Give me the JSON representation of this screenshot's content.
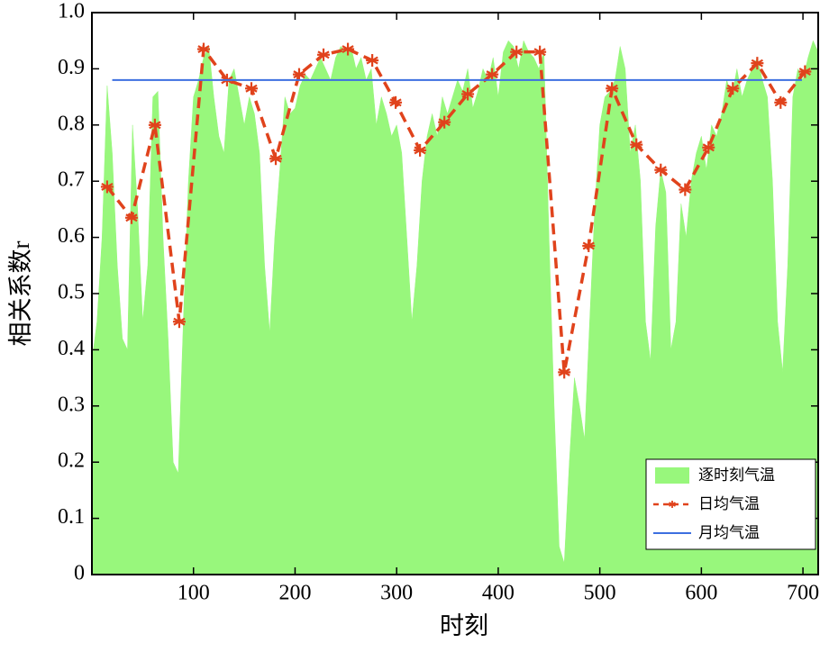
{
  "chart_data": {
    "type": "area-line",
    "xlabel": "时刻",
    "ylabel": "相关系数r",
    "xlim": [
      0,
      715
    ],
    "ylim": [
      0,
      1
    ],
    "xticks": [
      100,
      200,
      300,
      400,
      500,
      600,
      700
    ],
    "yticks": [
      0,
      0.1,
      0.2,
      0.3,
      0.4,
      0.5,
      0.6,
      0.7,
      0.8,
      0.9,
      {
        "value": 1,
        "label": "1.0"
      }
    ],
    "legend": "lower right",
    "series": [
      {
        "name": "逐时刻气温",
        "kind": "area",
        "color": "#98f77c",
        "x": [
          0,
          5,
          10,
          15,
          20,
          25,
          30,
          35,
          40,
          45,
          50,
          55,
          60,
          65,
          70,
          75,
          80,
          85,
          90,
          95,
          100,
          105,
          110,
          115,
          120,
          125,
          130,
          135,
          140,
          145,
          150,
          155,
          160,
          165,
          170,
          175,
          180,
          185,
          190,
          195,
          200,
          205,
          210,
          215,
          220,
          225,
          230,
          235,
          240,
          245,
          250,
          255,
          260,
          265,
          270,
          275,
          280,
          285,
          290,
          295,
          300,
          305,
          310,
          315,
          320,
          325,
          330,
          335,
          340,
          345,
          350,
          355,
          360,
          365,
          370,
          375,
          380,
          385,
          390,
          395,
          400,
          405,
          410,
          415,
          420,
          425,
          430,
          435,
          440,
          445,
          450,
          455,
          460,
          465,
          470,
          475,
          480,
          485,
          490,
          495,
          500,
          505,
          510,
          515,
          520,
          525,
          530,
          535,
          540,
          545,
          550,
          555,
          560,
          565,
          570,
          575,
          580,
          585,
          590,
          595,
          600,
          605,
          610,
          615,
          620,
          625,
          630,
          635,
          640,
          645,
          650,
          655,
          660,
          665,
          670,
          675,
          680,
          685,
          690,
          695,
          700,
          705,
          710,
          715
        ],
        "values": [
          0.38,
          0.45,
          0.6,
          0.87,
          0.75,
          0.55,
          0.42,
          0.4,
          0.8,
          0.65,
          0.45,
          0.55,
          0.85,
          0.86,
          0.6,
          0.42,
          0.2,
          0.18,
          0.45,
          0.7,
          0.85,
          0.88,
          0.92,
          0.94,
          0.85,
          0.78,
          0.75,
          0.88,
          0.9,
          0.85,
          0.8,
          0.85,
          0.82,
          0.75,
          0.55,
          0.43,
          0.6,
          0.72,
          0.85,
          0.82,
          0.83,
          0.87,
          0.89,
          0.88,
          0.9,
          0.92,
          0.9,
          0.88,
          0.92,
          0.94,
          0.93,
          0.94,
          0.9,
          0.92,
          0.88,
          0.9,
          0.8,
          0.85,
          0.82,
          0.78,
          0.8,
          0.75,
          0.6,
          0.45,
          0.55,
          0.7,
          0.78,
          0.82,
          0.78,
          0.85,
          0.82,
          0.85,
          0.88,
          0.86,
          0.9,
          0.83,
          0.86,
          0.9,
          0.88,
          0.92,
          0.85,
          0.93,
          0.95,
          0.94,
          0.9,
          0.95,
          0.93,
          0.92,
          0.9,
          0.93,
          0.6,
          0.3,
          0.05,
          0.02,
          0.2,
          0.35,
          0.3,
          0.24,
          0.45,
          0.65,
          0.8,
          0.85,
          0.86,
          0.88,
          0.94,
          0.9,
          0.75,
          0.8,
          0.7,
          0.45,
          0.38,
          0.62,
          0.72,
          0.68,
          0.4,
          0.45,
          0.66,
          0.6,
          0.7,
          0.75,
          0.78,
          0.72,
          0.8,
          0.78,
          0.82,
          0.88,
          0.85,
          0.9,
          0.85,
          0.88,
          0.9,
          0.92,
          0.88,
          0.85,
          0.7,
          0.45,
          0.36,
          0.55,
          0.85,
          0.9,
          0.88,
          0.92,
          0.95,
          0.93
        ]
      },
      {
        "name": "日均气温",
        "kind": "dashed-marker",
        "color": "#e0431c",
        "x": [
          15,
          39,
          62,
          86,
          110,
          133,
          157,
          181,
          204,
          228,
          252,
          276,
          299,
          323,
          347,
          370,
          394,
          418,
          441,
          465,
          489,
          512,
          536,
          560,
          584,
          607,
          631,
          655,
          678,
          702
        ],
        "values": [
          0.69,
          0.635,
          0.8,
          0.45,
          0.935,
          0.88,
          0.865,
          0.74,
          0.89,
          0.925,
          0.935,
          0.915,
          0.84,
          0.755,
          0.805,
          0.855,
          0.89,
          0.93,
          0.93,
          0.36,
          0.585,
          0.865,
          0.765,
          0.72,
          0.685,
          0.76,
          0.865,
          0.91,
          0.84,
          0.895
        ]
      },
      {
        "name": "月均气温",
        "kind": "line",
        "color": "#3d6fe0",
        "x": [
          20,
          699
        ],
        "values": [
          0.88,
          0.88
        ]
      }
    ]
  }
}
